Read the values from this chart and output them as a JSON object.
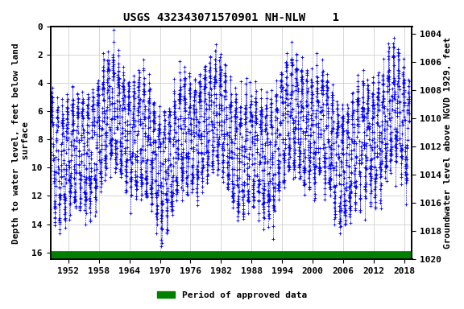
{
  "title": "USGS 432343071570901 NH-NLW    1",
  "ylabel_left": "Depth to water level, feet below land\n surface",
  "ylabel_right": "Groundwater level above NGVD 1929, feet",
  "xlim": [
    1948.5,
    2019.5
  ],
  "ylim_left": [
    0,
    16.5
  ],
  "ylim_right": [
    1020,
    1003.5
  ],
  "xticks": [
    1952,
    1958,
    1964,
    1970,
    1976,
    1982,
    1988,
    1994,
    2000,
    2006,
    2012,
    2018
  ],
  "yticks_left": [
    0,
    2,
    4,
    6,
    8,
    10,
    12,
    14,
    16
  ],
  "yticks_right": [
    1020,
    1018,
    1016,
    1014,
    1012,
    1010,
    1008,
    1006,
    1004
  ],
  "marker_color": "#0000FF",
  "line_color": "#0000FF",
  "green_bar_color": "#008000",
  "background_color": "#FFFFFF",
  "grid_color": "#C8C8C8",
  "title_fontsize": 10,
  "label_fontsize": 8,
  "tick_fontsize": 8,
  "seed": 42,
  "x_start_year": 1948,
  "x_end_year": 2019
}
